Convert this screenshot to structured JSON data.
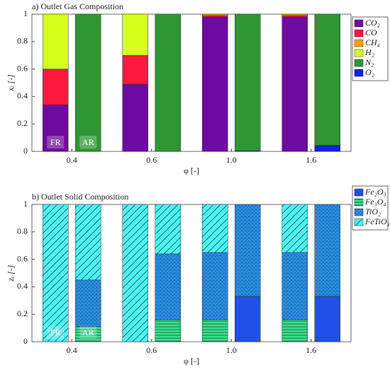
{
  "chart_data": [
    {
      "type": "stacked-bar",
      "title": "a) Outlet Gas Composition",
      "xlabel": "φ [-]",
      "ylabel": "xᵢ [-]",
      "categories": [
        "0.4",
        "0.6",
        "1.0",
        "1.6"
      ],
      "bar_labels": [
        "FR",
        "AR"
      ],
      "ylim": [
        0,
        1
      ],
      "yticks": [
        0,
        0.2,
        0.4,
        0.6,
        0.8,
        1
      ],
      "legend": "outside-right",
      "series": [
        {
          "name": "CO₂",
          "color": "#6e0aa0",
          "values": [
            [
              0.34,
              0
            ],
            [
              0.49,
              0
            ],
            [
              0.98,
              0
            ],
            [
              0.98,
              0
            ]
          ]
        },
        {
          "name": "CO",
          "color": "#ff1840",
          "values": [
            [
              0.26,
              0
            ],
            [
              0.21,
              0
            ],
            [
              0.01,
              0
            ],
            [
              0.01,
              0
            ]
          ]
        },
        {
          "name": "CH₄",
          "color": "#ff9a20",
          "values": [
            [
              0,
              0
            ],
            [
              0,
              0
            ],
            [
              0.01,
              0
            ],
            [
              0.01,
              0
            ]
          ]
        },
        {
          "name": "H₂",
          "color": "#d6ff1c",
          "values": [
            [
              0.4,
              0
            ],
            [
              0.3,
              0
            ],
            [
              0,
              0
            ],
            [
              0,
              0
            ]
          ]
        },
        {
          "name": "N₂",
          "color": "#2e9632",
          "values": [
            [
              0,
              1
            ],
            [
              0,
              1
            ],
            [
              0,
              0.995
            ],
            [
              0,
              0.955
            ]
          ]
        },
        {
          "name": "O₂",
          "color": "#1020e0",
          "values": [
            [
              0,
              0
            ],
            [
              0,
              0
            ],
            [
              0,
              0.005
            ],
            [
              0,
              0.045
            ]
          ]
        }
      ]
    },
    {
      "type": "stacked-bar",
      "title": "b) Outlet Solid Composition",
      "xlabel": "φ [-]",
      "ylabel": "zᵢ [-]",
      "categories": [
        "0.4",
        "0.6",
        "1.0",
        "1.6"
      ],
      "bar_labels": [
        "FR",
        "AR"
      ],
      "ylim": [
        0,
        1
      ],
      "yticks": [
        0,
        0.2,
        0.4,
        0.6,
        0.8,
        1
      ],
      "legend": "outside-right",
      "series": [
        {
          "name": "Fe₂O₃",
          "color": "#1f4fe6",
          "values": [
            [
              0,
              0
            ],
            [
              0,
              0
            ],
            [
              0,
              0.33
            ],
            [
              0,
              0.33
            ]
          ]
        },
        {
          "name": "Fe₃O₄",
          "color": "#3ee08a",
          "pattern": "horizontal",
          "values": [
            [
              0,
              0.11
            ],
            [
              0,
              0.16
            ],
            [
              0.16,
              0
            ],
            [
              0.16,
              0
            ]
          ]
        },
        {
          "name": "TiO₂",
          "color": "#2a8be0",
          "pattern": "dots",
          "values": [
            [
              0,
              0.34
            ],
            [
              0,
              0.48
            ],
            [
              0.49,
              0.67
            ],
            [
              0.49,
              0.67
            ]
          ]
        },
        {
          "name": "FeTiO₃",
          "color": "#4ef2f2",
          "pattern": "diagonal",
          "values": [
            [
              1,
              0.55
            ],
            [
              1,
              0.36
            ],
            [
              0.35,
              0
            ],
            [
              0.35,
              0
            ]
          ]
        }
      ]
    }
  ]
}
